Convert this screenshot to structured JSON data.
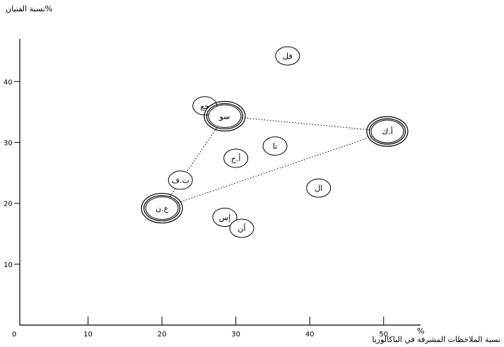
{
  "chart_data": {
    "type": "scatter",
    "ylabel": "نسبة الفتيان%",
    "xlabel": "نسبة الملاحظات المشرفة في الباكالوريا",
    "xunit": "%",
    "xlim": [
      0,
      55
    ],
    "ylim": [
      0,
      47
    ],
    "xticks": [
      0,
      10,
      20,
      30,
      40,
      50
    ],
    "yticks": [
      10,
      20,
      30,
      40
    ],
    "grid": false,
    "points": [
      {
        "label": "فل",
        "x": 37,
        "y": 44.2,
        "style": "plain"
      },
      {
        "label": "جع",
        "x": 25.8,
        "y": 36,
        "style": "plain"
      },
      {
        "label": "سو",
        "x": 28.5,
        "y": 34.3,
        "style": "ring"
      },
      {
        "label": "أ.ك",
        "x": 50.5,
        "y": 31.8,
        "style": "ring"
      },
      {
        "label": "تا",
        "x": 35.3,
        "y": 29.4,
        "style": "plain"
      },
      {
        "label": "أ.ج",
        "x": 30,
        "y": 27.4,
        "style": "plain"
      },
      {
        "label": "ت.ف",
        "x": 22.5,
        "y": 23.8,
        "style": "plain"
      },
      {
        "label": "ال",
        "x": 41.2,
        "y": 22.5,
        "style": "plain"
      },
      {
        "label": "ع.ن",
        "x": 20,
        "y": 19.2,
        "style": "ring"
      },
      {
        "label": "إس",
        "x": 28.5,
        "y": 17.7,
        "style": "plain"
      },
      {
        "label": "أن",
        "x": 30.8,
        "y": 15.9,
        "style": "plain"
      }
    ],
    "links": [
      [
        "ع.ن",
        "سو"
      ],
      [
        "سو",
        "أ.ك"
      ],
      [
        "ع.ن",
        "أ.ك"
      ]
    ]
  }
}
